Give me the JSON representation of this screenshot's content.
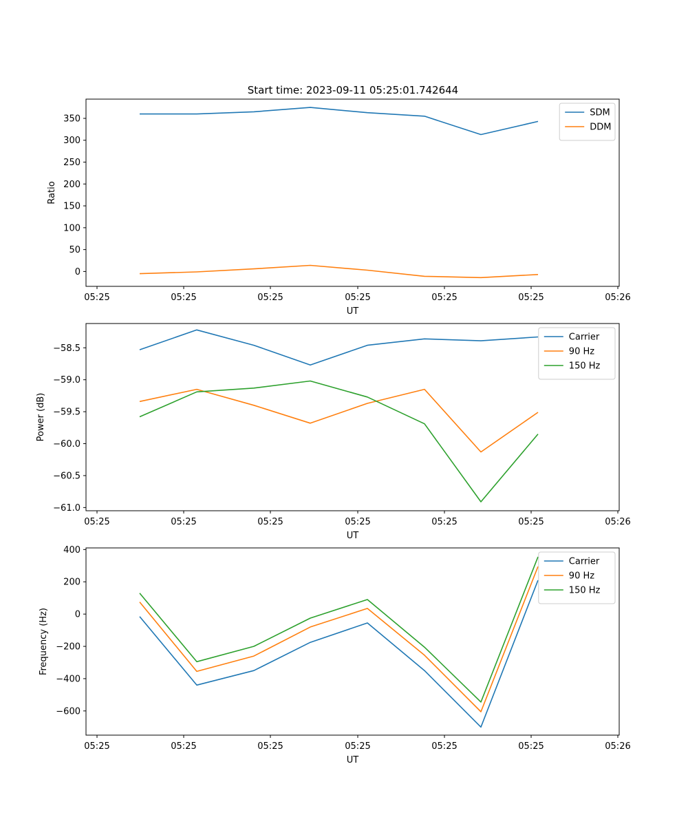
{
  "title": "Start time: 2023-09-11 05:25:01.742644",
  "chart_data": [
    {
      "type": "line",
      "ylabel": "Ratio",
      "xlabel": "UT",
      "x_tick_labels": [
        "05:25",
        "05:25",
        "05:25",
        "05:25",
        "05:25",
        "05:25",
        "05:26"
      ],
      "y_ticks": [
        0,
        50,
        100,
        150,
        200,
        250,
        300,
        350
      ],
      "ylim": [
        -34,
        394
      ],
      "legend_loc": "top-right",
      "series": [
        {
          "name": "SDM",
          "color": "#1f77b4",
          "values": [
            360,
            360,
            365,
            375,
            363,
            355,
            313,
            343
          ]
        },
        {
          "name": "DDM",
          "color": "#ff7f0e",
          "values": [
            -5,
            -1,
            6,
            14,
            3,
            -11,
            -14,
            -7
          ]
        }
      ]
    },
    {
      "type": "line",
      "ylabel": "Power (dB)",
      "xlabel": "UT",
      "x_tick_labels": [
        "05:25",
        "05:25",
        "05:25",
        "05:25",
        "05:25",
        "05:25",
        "05:26"
      ],
      "y_ticks": [
        -61.0,
        -60.5,
        -60.0,
        -59.5,
        -59.0,
        -58.5
      ],
      "y_tick_labels": [
        "−61.0",
        "−60.5",
        "−60.0",
        "−59.5",
        "−59.0",
        "−58.5"
      ],
      "ylim": [
        -61.05,
        -58.12
      ],
      "legend_loc": "top-right",
      "series": [
        {
          "name": "Carrier",
          "color": "#1f77b4",
          "values": [
            -58.53,
            -58.22,
            -58.46,
            -58.77,
            -58.46,
            -58.36,
            -58.39,
            -58.33
          ]
        },
        {
          "name": "90 Hz",
          "color": "#ff7f0e",
          "values": [
            -59.34,
            -59.15,
            -59.4,
            -59.68,
            -59.37,
            -59.15,
            -60.13,
            -59.51
          ]
        },
        {
          "name": "150 Hz",
          "color": "#2ca02c",
          "values": [
            -59.58,
            -59.19,
            -59.13,
            -59.02,
            -59.27,
            -59.69,
            -60.91,
            -59.85
          ]
        }
      ]
    },
    {
      "type": "line",
      "ylabel": "Frequency (Hz)",
      "xlabel": "UT",
      "x_tick_labels": [
        "05:25",
        "05:25",
        "05:25",
        "05:25",
        "05:25",
        "05:25",
        "05:26"
      ],
      "y_ticks": [
        -600,
        -400,
        -200,
        0,
        200,
        400
      ],
      "y_tick_labels": [
        "−600",
        "−400",
        "−200",
        "0",
        "200",
        "400"
      ],
      "ylim": [
        -750,
        410
      ],
      "legend_loc": "top-right",
      "series": [
        {
          "name": "Carrier",
          "color": "#1f77b4",
          "values": [
            -15,
            -440,
            -350,
            -175,
            -55,
            -350,
            -700,
            210
          ]
        },
        {
          "name": "90 Hz",
          "color": "#ff7f0e",
          "values": [
            75,
            -355,
            -260,
            -80,
            35,
            -255,
            -605,
            295
          ]
        },
        {
          "name": "150 Hz",
          "color": "#2ca02c",
          "values": [
            130,
            -295,
            -200,
            -25,
            90,
            -205,
            -545,
            355
          ]
        }
      ]
    }
  ]
}
